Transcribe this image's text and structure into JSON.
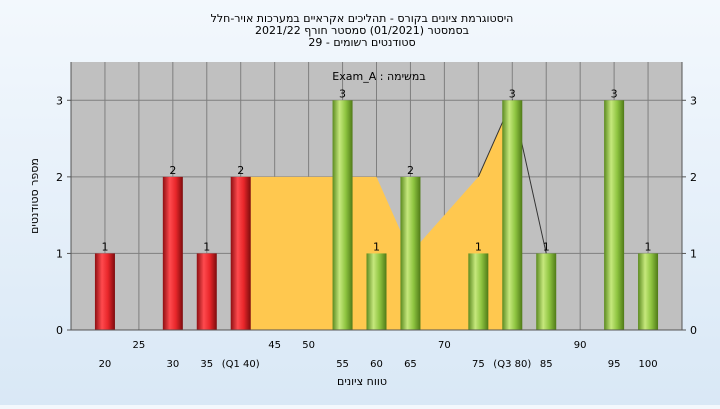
{
  "chart_data": {
    "type": "bar",
    "title_lines": [
      "היסטוגרמת ציונים בקורס - תהליכים אקראיים במערכות אויר-חלל",
      "בסמסטר  (01/2021)  סמסטר חורף 2021/22",
      "סטודנטים רשומים - 29"
    ],
    "legend_text": "Exam_A : במשימה",
    "xlabel": "טווח ציונים",
    "ylabel": "מספר סטודנטים",
    "ylim": [
      0,
      3.5
    ],
    "y_ticks": [
      0,
      1,
      2,
      3
    ],
    "xlim": [
      15,
      105
    ],
    "x_ticks_row1": [
      "25",
      "45",
      "50",
      "70",
      "90"
    ],
    "x_ticks_row2": [
      "20",
      "30",
      "35",
      "(Q1 40)",
      "55",
      "60",
      "65",
      "75",
      "(Q3 80)",
      "85",
      "95",
      "100"
    ],
    "bars": [
      {
        "x": 20,
        "value": 1,
        "group": "red"
      },
      {
        "x": 30,
        "value": 2,
        "group": "red"
      },
      {
        "x": 35,
        "value": 1,
        "group": "red"
      },
      {
        "x": 40,
        "value": 2,
        "group": "red"
      },
      {
        "x": 55,
        "value": 3,
        "group": "green"
      },
      {
        "x": 60,
        "value": 1,
        "group": "green"
      },
      {
        "x": 65,
        "value": 2,
        "group": "green"
      },
      {
        "x": 75,
        "value": 1,
        "group": "green"
      },
      {
        "x": 80,
        "value": 3,
        "group": "green"
      },
      {
        "x": 85,
        "value": 1,
        "group": "green"
      },
      {
        "x": 95,
        "value": 3,
        "group": "green"
      },
      {
        "x": 100,
        "value": 1,
        "group": "green"
      }
    ],
    "iqr_area": [
      [
        40,
        2
      ],
      [
        55,
        2
      ],
      [
        60,
        2
      ],
      [
        65,
        1
      ],
      [
        75,
        2
      ],
      [
        80,
        3
      ]
    ],
    "trend_line": [
      [
        75,
        2
      ],
      [
        80,
        3
      ],
      [
        85,
        1
      ]
    ],
    "colors": {
      "plot_bg": "#c0c0c0",
      "grid": "#7f7f7f",
      "red": "#e8262a",
      "green": "#8fc541",
      "area": "#ffc84f"
    }
  }
}
